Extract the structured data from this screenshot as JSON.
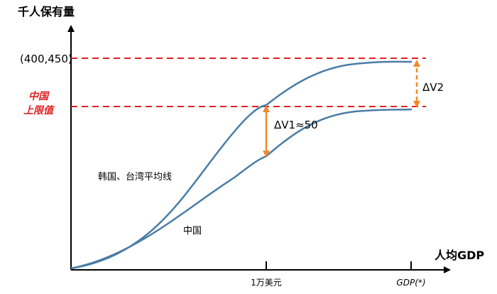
{
  "chart_data": {
    "type": "line",
    "y_axis_label": "千人保有量",
    "x_axis_label": "人均GDP",
    "x_ticks": [
      "1万美元",
      "GDP(*)"
    ],
    "upper_reference_label": "(400,450)",
    "lower_reference_label_line1": "中国",
    "lower_reference_label_line2": "上限值",
    "gap_labels": [
      "ΔV1≈50",
      "ΔV2"
    ],
    "series": [
      {
        "name": "韩国、台湾平均线",
        "color": "#4a7ca6"
      },
      {
        "name": "中国",
        "color": "#4a7ca6"
      }
    ],
    "colors": {
      "axis": "#000000",
      "curve": "#4a7ca6",
      "reference_line": "#e02020",
      "gap_arrow": "#ef8b2c"
    }
  }
}
